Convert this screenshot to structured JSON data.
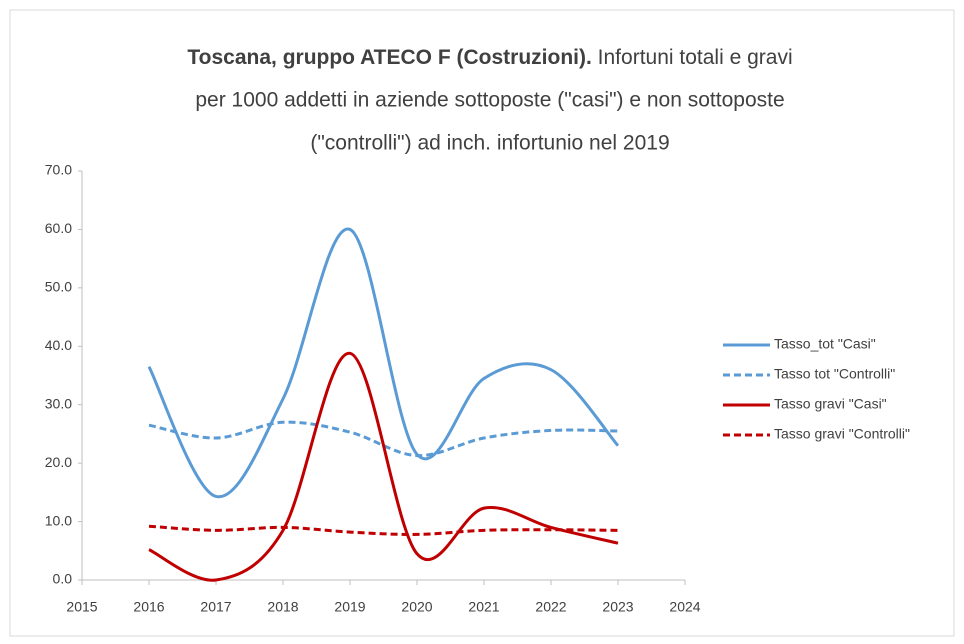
{
  "chart_data": {
    "type": "line",
    "title_lines": [
      "Toscana, gruppo ATECO F (Costruzioni).",
      "Infortuni totali e gravi",
      "per 1000 addetti in aziende sottoposte (\"casi\") e non sottoposte",
      "(\"controlli\") ad inch. infortunio nel 2019"
    ],
    "x": [
      2016,
      2017,
      2018,
      2019,
      2020,
      2021,
      2022,
      2023
    ],
    "series": [
      {
        "name": "Tasso_tot \"Casi\"",
        "color": "#5b9bd5",
        "dashed": false,
        "values": [
          36.5,
          14.3,
          31,
          60,
          21.5,
          34.5,
          36,
          23
        ]
      },
      {
        "name": "Tasso tot \"Controlli\"",
        "color": "#5b9bd5",
        "dashed": true,
        "values": [
          26.5,
          24.3,
          27,
          25.3,
          21.3,
          24.3,
          25.6,
          25.5
        ]
      },
      {
        "name": "Tasso gravi \"Casi\"",
        "color": "#c00000",
        "dashed": false,
        "values": [
          5.2,
          0,
          8.5,
          38.8,
          4.5,
          12.3,
          9,
          6.3
        ]
      },
      {
        "name": "Tasso gravi \"Controlli\"",
        "color": "#c00000",
        "dashed": true,
        "values": [
          9.2,
          8.5,
          9,
          8.2,
          7.8,
          8.5,
          8.6,
          8.5
        ]
      }
    ],
    "xlim": [
      2015,
      2024
    ],
    "xticks": [
      2015,
      2016,
      2017,
      2018,
      2019,
      2020,
      2021,
      2022,
      2023,
      2024
    ],
    "ylim": [
      0,
      70
    ],
    "yticks": [
      {
        "value": 0,
        "label": "0.0"
      },
      {
        "value": 10,
        "label": "10.0"
      },
      {
        "value": 20,
        "label": "20.0"
      },
      {
        "value": 30,
        "label": "30.0"
      },
      {
        "value": 40,
        "label": "40.0"
      },
      {
        "value": 50,
        "label": "50.0"
      },
      {
        "value": 60,
        "label": "60.0"
      },
      {
        "value": 70,
        "label": "70.0"
      }
    ],
    "grid": false,
    "smooth": true,
    "legend": "right"
  }
}
